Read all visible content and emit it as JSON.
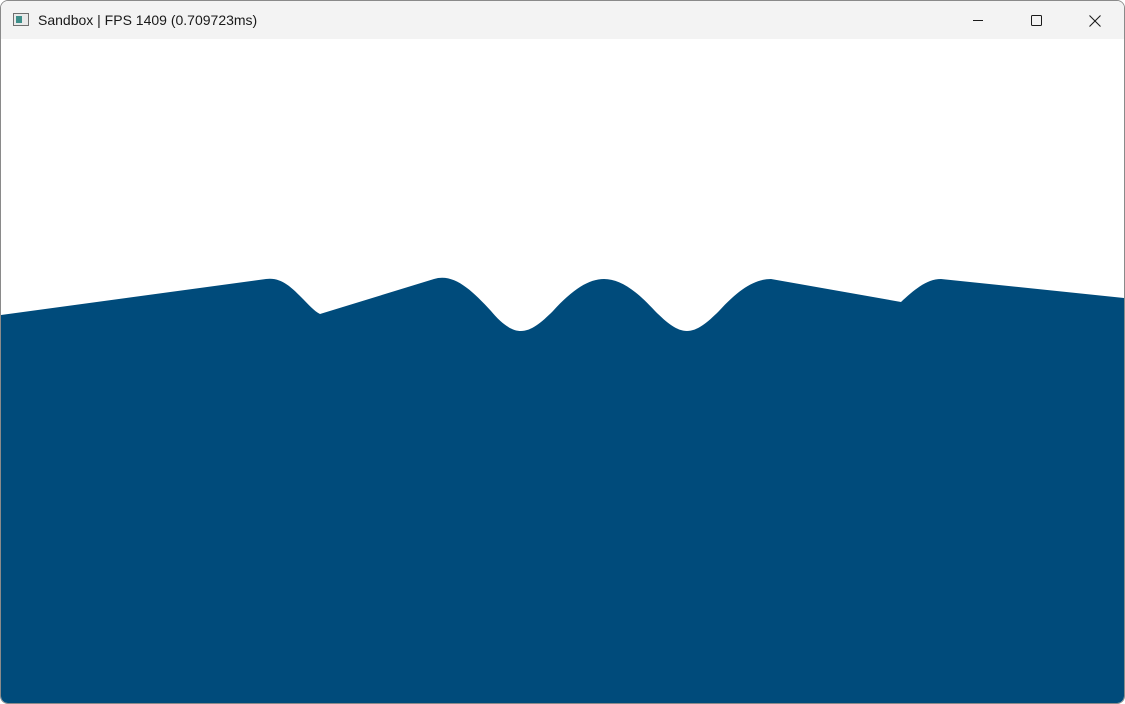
{
  "window": {
    "title": "Sandbox | FPS 1409 (0.709723ms)",
    "icon": "app-window-icon",
    "controls": {
      "minimize_icon": "minimize-icon",
      "maximize_icon": "maximize-icon",
      "close_icon": "close-icon"
    }
  },
  "scene": {
    "background_color": "#ffffff",
    "terrain_color": "#004b7b",
    "terrain_description_icon": "terrain-shape"
  }
}
